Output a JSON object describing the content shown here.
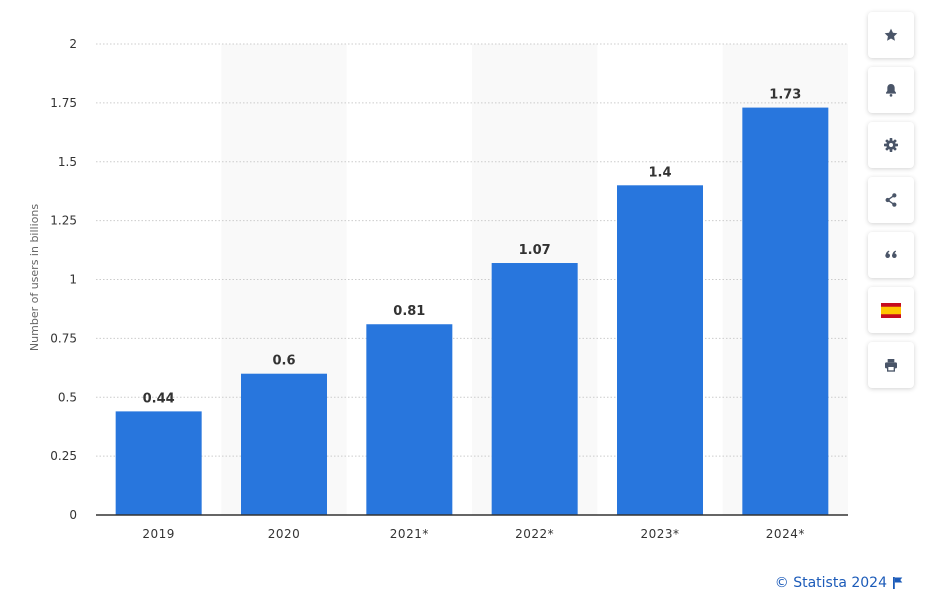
{
  "chart_data": {
    "type": "bar",
    "categories": [
      "2019",
      "2020",
      "2021*",
      "2022*",
      "2023*",
      "2024*"
    ],
    "values": [
      0.44,
      0.6,
      0.81,
      1.07,
      1.4,
      1.73
    ],
    "value_labels": [
      "0.44",
      "0.6",
      "0.81",
      "1.07",
      "1.4",
      "1.73"
    ],
    "title": "",
    "xlabel": "",
    "ylabel": "Number of users in billions",
    "ylim": [
      0,
      2
    ],
    "yticks": [
      0,
      0.25,
      0.5,
      0.75,
      1,
      1.25,
      1.5,
      1.75,
      2
    ],
    "ytick_labels": [
      "0",
      "0.25",
      "0.5",
      "0.75",
      "1",
      "1.25",
      "1.5",
      "1.75",
      "2"
    ],
    "grid": true,
    "bar_color": "#2876dd",
    "alt_band_color": "#f9f9f9"
  },
  "toolbar": {
    "buttons": [
      {
        "name": "favorite",
        "icon": "star-icon"
      },
      {
        "name": "notification",
        "icon": "bell-icon"
      },
      {
        "name": "settings",
        "icon": "gear-icon"
      },
      {
        "name": "share",
        "icon": "share-icon"
      },
      {
        "name": "citation",
        "icon": "quote-icon"
      },
      {
        "name": "language",
        "icon": "spain-flag-icon"
      },
      {
        "name": "print",
        "icon": "printer-icon"
      }
    ]
  },
  "credit": {
    "text": "© Statista 2024",
    "icon": "flag-icon",
    "color": "#1c5bb9"
  }
}
